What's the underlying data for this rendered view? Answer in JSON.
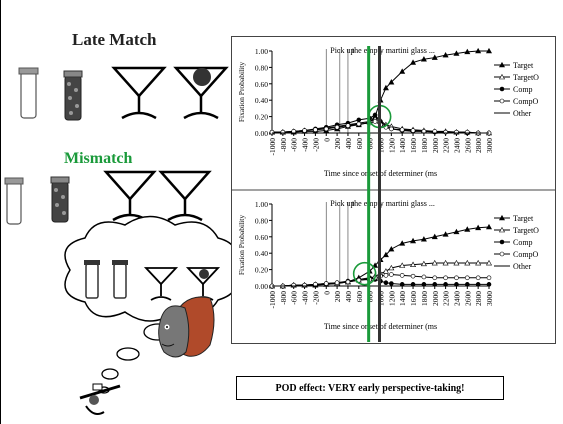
{
  "slide": {
    "late_match_title": "Late Match",
    "mismatch_title": "Mismatch",
    "conclusion": "POD effect: VERY early perspective-taking!",
    "accent_color": "#1a9a3a"
  },
  "icons": [
    "empty-jar-icon",
    "bead-jar-icon",
    "martini-glass-icon",
    "olive-martini-glass-icon",
    "thought-cloud-icon",
    "person-head-icon",
    "skier-icon"
  ],
  "chart_data": [
    {
      "type": "line",
      "sentence_words": [
        "Pick up",
        "the empty martini glass ..."
      ],
      "xlabel": "Time since onset of determiner (ms",
      "ylabel": "Fixation Probability",
      "x_ticks": [
        "-1000",
        "-800",
        "-600",
        "-400",
        "-200",
        "0",
        "200",
        "400",
        "600",
        "800",
        "1000",
        "1200",
        "1400",
        "1600",
        "1800",
        "2000",
        "2200",
        "2400",
        "2600",
        "2800",
        "3000"
      ],
      "y_ticks": [
        "0.00",
        "0.20",
        "0.40",
        "0.60",
        "0.80",
        "1.00"
      ],
      "xlim": [
        -1000,
        3000
      ],
      "ylim": [
        0,
        1
      ],
      "green_line_ms": 800,
      "black_line_ms": 1000,
      "word_onsets_ms": [
        0,
        250,
        400
      ],
      "legend": [
        "Target",
        "TargetO",
        "Comp",
        "CompO",
        "Other"
      ],
      "x": [
        -1000,
        -800,
        -600,
        -400,
        -200,
        0,
        200,
        400,
        600,
        800,
        900,
        1000,
        1100,
        1200,
        1400,
        1600,
        1800,
        2000,
        2200,
        2400,
        2600,
        2800,
        3000
      ],
      "series": [
        {
          "name": "Target",
          "values": [
            0.01,
            0.01,
            0.01,
            0.02,
            0.02,
            0.03,
            0.05,
            0.08,
            0.1,
            0.13,
            0.2,
            0.4,
            0.55,
            0.62,
            0.75,
            0.86,
            0.9,
            0.92,
            0.95,
            0.97,
            0.99,
            1.0,
            1.0
          ]
        },
        {
          "name": "TargetO",
          "values": [
            0.01,
            0.01,
            0.02,
            0.03,
            0.04,
            0.06,
            0.08,
            0.1,
            0.12,
            0.14,
            0.17,
            0.15,
            0.1,
            0.08,
            0.05,
            0.04,
            0.03,
            0.02,
            0.02,
            0.01,
            0.01,
            0.0,
            0.0
          ]
        },
        {
          "name": "Comp",
          "values": [
            0.01,
            0.01,
            0.02,
            0.03,
            0.05,
            0.07,
            0.1,
            0.12,
            0.16,
            0.18,
            0.22,
            0.14,
            0.08,
            0.05,
            0.03,
            0.02,
            0.02,
            0.01,
            0.01,
            0.01,
            0.0,
            0.0,
            0.0
          ]
        },
        {
          "name": "CompO",
          "values": [
            0.01,
            0.01,
            0.02,
            0.03,
            0.04,
            0.05,
            0.07,
            0.09,
            0.11,
            0.12,
            0.14,
            0.1,
            0.07,
            0.05,
            0.04,
            0.03,
            0.02,
            0.02,
            0.01,
            0.01,
            0.01,
            0.0,
            0.0
          ]
        },
        {
          "name": "Other",
          "values": [
            0.0,
            0.0,
            0.0,
            0.0,
            0.0,
            0.0,
            0.0,
            0.0,
            0.0,
            0.0,
            0.0,
            0.0,
            0.0,
            0.0,
            0.0,
            0.0,
            0.0,
            0.0,
            0.0,
            0.0,
            0.0,
            0.0,
            0.0
          ]
        }
      ]
    },
    {
      "type": "line",
      "sentence_words": [
        "Pick up",
        "the empty martini glass ..."
      ],
      "xlabel": "Time since onset of determiner (ms",
      "ylabel": "Fixation Probability",
      "x_ticks": [
        "-1000",
        "-800",
        "-600",
        "-400",
        "-200",
        "0",
        "200",
        "400",
        "600",
        "800",
        "1000",
        "1200",
        "1400",
        "1600",
        "1800",
        "2000",
        "2200",
        "2400",
        "2600",
        "2800",
        "3000"
      ],
      "y_ticks": [
        "0.00",
        "0.20",
        "0.40",
        "0.60",
        "0.80",
        "1.00"
      ],
      "xlim": [
        -1000,
        3000
      ],
      "ylim": [
        0,
        1
      ],
      "green_line_ms": 800,
      "black_line_ms": 1000,
      "word_onsets_ms": [
        0,
        250,
        400
      ],
      "legend": [
        "Target",
        "TargetO",
        "Comp",
        "CompO",
        "Other"
      ],
      "x": [
        -1000,
        -800,
        -600,
        -400,
        -200,
        0,
        200,
        400,
        600,
        800,
        900,
        1000,
        1100,
        1200,
        1400,
        1600,
        1800,
        2000,
        2200,
        2400,
        2600,
        2800,
        3000
      ],
      "series": [
        {
          "name": "Target",
          "values": [
            0.0,
            0.0,
            0.01,
            0.01,
            0.01,
            0.02,
            0.03,
            0.05,
            0.1,
            0.18,
            0.25,
            0.32,
            0.38,
            0.45,
            0.52,
            0.55,
            0.57,
            0.6,
            0.63,
            0.66,
            0.69,
            0.71,
            0.72
          ]
        },
        {
          "name": "TargetO",
          "values": [
            0.0,
            0.0,
            0.01,
            0.01,
            0.02,
            0.02,
            0.03,
            0.05,
            0.07,
            0.09,
            0.12,
            0.15,
            0.18,
            0.22,
            0.25,
            0.26,
            0.27,
            0.28,
            0.28,
            0.28,
            0.28,
            0.28,
            0.28
          ]
        },
        {
          "name": "Comp",
          "values": [
            0.0,
            0.0,
            0.01,
            0.01,
            0.02,
            0.03,
            0.04,
            0.06,
            0.08,
            0.1,
            0.08,
            0.06,
            0.04,
            0.03,
            0.02,
            0.02,
            0.02,
            0.02,
            0.02,
            0.02,
            0.02,
            0.02,
            0.02
          ]
        },
        {
          "name": "CompO",
          "values": [
            0.0,
            0.0,
            0.01,
            0.01,
            0.02,
            0.03,
            0.04,
            0.05,
            0.07,
            0.08,
            0.1,
            0.12,
            0.13,
            0.14,
            0.13,
            0.12,
            0.11,
            0.1,
            0.1,
            0.1,
            0.1,
            0.1,
            0.1
          ]
        },
        {
          "name": "Other",
          "values": [
            0.0,
            0.0,
            0.0,
            0.0,
            0.0,
            0.0,
            0.0,
            0.0,
            0.0,
            0.0,
            0.0,
            0.0,
            0.0,
            0.0,
            0.0,
            0.0,
            0.0,
            0.0,
            0.0,
            0.0,
            0.0,
            0.0,
            0.0
          ]
        }
      ]
    }
  ]
}
